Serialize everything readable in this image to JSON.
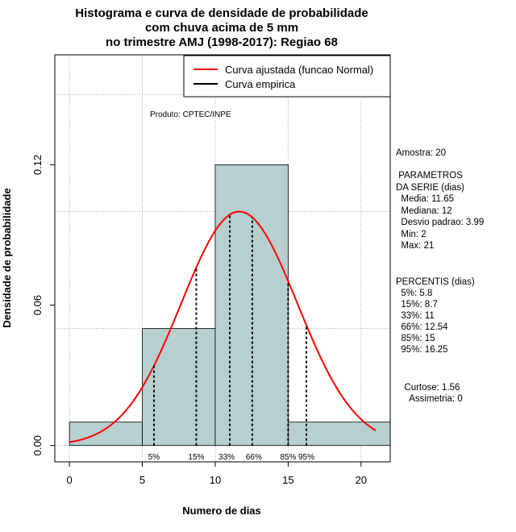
{
  "chart_data": {
    "type": "bar",
    "title_lines": [
      "Histograma e curva de densidade de probabilidade",
      "com chuva acima de 5 mm",
      "no trimestre AMJ (1998-2017): Regiao 68"
    ],
    "xlabel": "Numero de dias",
    "ylabel": "Densidade de probabilidade",
    "xlim": [
      -1,
      22
    ],
    "ylim": [
      -0.007,
      0.167
    ],
    "x_ticks": [
      0,
      5,
      10,
      15,
      20
    ],
    "y_ticks": [
      0.0,
      0.06,
      0.12
    ],
    "y_tick_labels": [
      "0.00",
      "0.06",
      "0.12"
    ],
    "grid_x": [
      0,
      5,
      10,
      15,
      20
    ],
    "grid_y": [
      0.0,
      0.05,
      0.1,
      0.15
    ],
    "histogram": [
      {
        "from": 0,
        "to": 5,
        "density": 0.01
      },
      {
        "from": 5,
        "to": 10,
        "density": 0.05
      },
      {
        "from": 10,
        "to": 15,
        "density": 0.12
      },
      {
        "from": 15,
        "to": 22,
        "density": 0.01
      }
    ],
    "normal_fit": {
      "mean": 11.65,
      "sd": 3.99,
      "x_min": 0,
      "x_max": 21
    },
    "percentile_lines": [
      {
        "label": "5%",
        "x": 5.8
      },
      {
        "label": "15%",
        "x": 8.7
      },
      {
        "label": "33%",
        "x": 11
      },
      {
        "label": "66%",
        "x": 12.54
      },
      {
        "label": "85%",
        "x": 15
      },
      {
        "label": "95%",
        "x": 16.25
      }
    ],
    "legend": {
      "position": "top-right",
      "entries": [
        {
          "label": "Curva ajustada (funcao Normal)",
          "color": "#ff0000"
        },
        {
          "label": "Curva empirica",
          "color": "#000000"
        }
      ]
    },
    "annotation": "Produto: CPTEC/INPE",
    "colors": {
      "bar_fill": "#b7cfcf",
      "curve": "#ff0000",
      "grid": "#aaaaaa"
    }
  },
  "side_panel": {
    "amostra": "Amostra: 20",
    "param_header1": " PARAMETROS",
    "param_header2": "DA SERIE (dias)",
    "media": "  Media: 11.65",
    "mediana": "  Mediana: 12",
    "desvio": "  Desvio padrao: 3.99",
    "min": "  Min: 2",
    "max": "  Max: 21",
    "perc_header": "PERCENTIS (dias)",
    "p5": "  5%: 5.8",
    "p15": "  15%: 8.7",
    "p33": "  33%: 11",
    "p66": "  66%: 12.54",
    "p85": "  85%: 15",
    "p95": "  95%: 16.25",
    "curtose": "  Curtose: 1.56",
    "assimetria": "    Assimetria: 0"
  }
}
